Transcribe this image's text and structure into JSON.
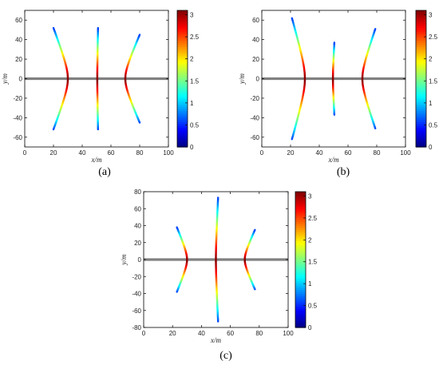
{
  "colorbar": {
    "min": 0,
    "max": 3.1,
    "ticks": [
      "0",
      "0.5",
      "1",
      "1.5",
      "2",
      "2.5",
      "3"
    ],
    "tick_values": [
      0,
      0.5,
      1,
      1.5,
      2,
      2.5,
      3
    ],
    "colormap": "jet"
  },
  "chart_data": [
    {
      "type": "line",
      "panel_label": "(a)",
      "xlabel": "x/m",
      "ylabel": "y/m",
      "xlim": [
        0,
        100
      ],
      "ylim": [
        -70,
        70
      ],
      "xticks": [
        "0",
        "20",
        "40",
        "60",
        "80",
        "100"
      ],
      "yticks": [
        "60",
        "40",
        "20",
        "0",
        "-20",
        "-40",
        "-60"
      ],
      "baseline": {
        "y": 0,
        "color": "#808080"
      },
      "curves": [
        {
          "type": "hyperbola",
          "x0": 30,
          "y_end": 52,
          "x_end": 20
        },
        {
          "type": "hyperbola",
          "x0": 50.5,
          "y_end": 52,
          "x_end": 51
        },
        {
          "type": "hyperbola",
          "x0": 70,
          "y_end": 45,
          "x_end": 80
        }
      ]
    },
    {
      "type": "line",
      "panel_label": "(b)",
      "xlabel": "x/m",
      "ylabel": "y/m",
      "xlim": [
        0,
        100
      ],
      "ylim": [
        -70,
        70
      ],
      "xticks": [
        "0",
        "20",
        "40",
        "60",
        "80",
        "100"
      ],
      "yticks": [
        "60",
        "40",
        "20",
        "0",
        "-20",
        "-40",
        "-60"
      ],
      "baseline": {
        "y": 0,
        "color": "#808080"
      },
      "curves": [
        {
          "type": "hyperbola",
          "x0": 30,
          "y_end": 62,
          "x_end": 21
        },
        {
          "type": "hyperbola",
          "x0": 49.5,
          "y_end": 37,
          "x_end": 50.5
        },
        {
          "type": "hyperbola",
          "x0": 70,
          "y_end": 51,
          "x_end": 79
        }
      ]
    },
    {
      "type": "line",
      "panel_label": "(c)",
      "xlabel": "x/m",
      "ylabel": "y/m",
      "xlim": [
        0,
        100
      ],
      "ylim": [
        -80,
        80
      ],
      "xticks": [
        "0",
        "20",
        "40",
        "60",
        "80",
        "100"
      ],
      "yticks": [
        "80",
        "60",
        "40",
        "20",
        "0",
        "-20",
        "-40",
        "-60",
        "-80"
      ],
      "baseline": {
        "y": 0,
        "color": "#808080"
      },
      "curves": [
        {
          "type": "hyperbola",
          "x0": 30,
          "y_end": 38,
          "x_end": 23
        },
        {
          "type": "hyperbola",
          "x0": 50,
          "y_end": 73,
          "x_end": 51.5
        },
        {
          "type": "hyperbola",
          "x0": 70,
          "y_end": 35,
          "x_end": 77
        }
      ]
    }
  ]
}
